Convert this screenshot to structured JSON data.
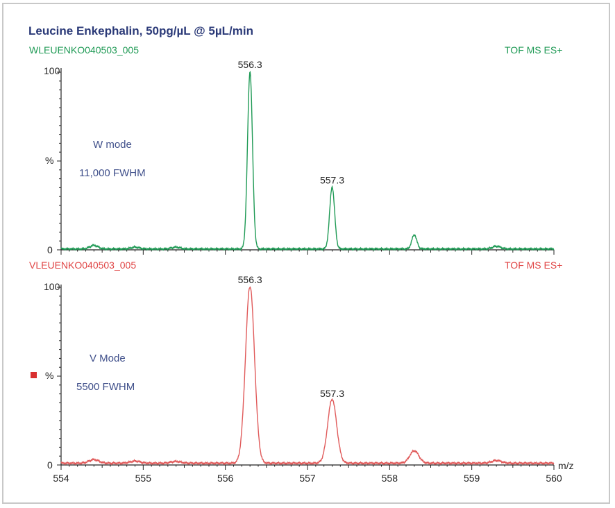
{
  "title": "Leucine Enkephalin, 50pg/µL @ 5µL/min",
  "colors": {
    "top_trace": "#1f9a55",
    "bottom_trace": "#e05a5a",
    "annotation": "#3f4f8a",
    "axis": "#222222"
  },
  "chart_data": [
    {
      "type": "line",
      "file_label": "WLEUENKO040503_005",
      "scan_label": "TOF MS ES+",
      "ylabel": "%",
      "ytick_labels": [
        "100",
        "0"
      ],
      "ylim": [
        0,
        100
      ],
      "xlim": [
        554,
        560
      ],
      "annotations": [
        "W mode",
        "11,000 FWHM"
      ],
      "peak_labels": [
        {
          "x": 556.3,
          "y": 100,
          "text": "556.3"
        },
        {
          "x": 557.3,
          "y": 35,
          "text": "557.3"
        }
      ],
      "peaks": [
        {
          "x": 554.4,
          "y": 2,
          "width": 0.05
        },
        {
          "x": 554.9,
          "y": 1,
          "width": 0.05
        },
        {
          "x": 555.4,
          "y": 1,
          "width": 0.05
        },
        {
          "x": 556.3,
          "y": 100,
          "width": 0.03
        },
        {
          "x": 557.3,
          "y": 35,
          "width": 0.03
        },
        {
          "x": 558.3,
          "y": 8,
          "width": 0.03
        },
        {
          "x": 559.3,
          "y": 1.5,
          "width": 0.05
        }
      ],
      "baseline": 0.5
    },
    {
      "type": "line",
      "file_label": "VLEUENKO040503_005",
      "scan_label": "TOF MS ES+",
      "ylabel": "%",
      "ytick_labels": [
        "100",
        "0"
      ],
      "ylim": [
        0,
        100
      ],
      "xlim": [
        554,
        560
      ],
      "xlabel": "m/z",
      "xticks": [
        554,
        555,
        556,
        557,
        558,
        559,
        560
      ],
      "xtick_labels": [
        "554",
        "555",
        "556",
        "557",
        "558",
        "559",
        "560"
      ],
      "annotations": [
        "V Mode",
        "5500 FWHM"
      ],
      "peak_labels": [
        {
          "x": 556.3,
          "y": 100,
          "text": "556.3"
        },
        {
          "x": 557.3,
          "y": 36,
          "text": "557.3"
        }
      ],
      "peaks": [
        {
          "x": 554.4,
          "y": 2,
          "width": 0.06
        },
        {
          "x": 554.9,
          "y": 1.2,
          "width": 0.06
        },
        {
          "x": 555.4,
          "y": 1,
          "width": 0.06
        },
        {
          "x": 556.3,
          "y": 100,
          "width": 0.055
        },
        {
          "x": 557.3,
          "y": 36,
          "width": 0.055
        },
        {
          "x": 558.3,
          "y": 7,
          "width": 0.055
        },
        {
          "x": 559.3,
          "y": 1.5,
          "width": 0.06
        }
      ],
      "baseline": 1
    }
  ]
}
